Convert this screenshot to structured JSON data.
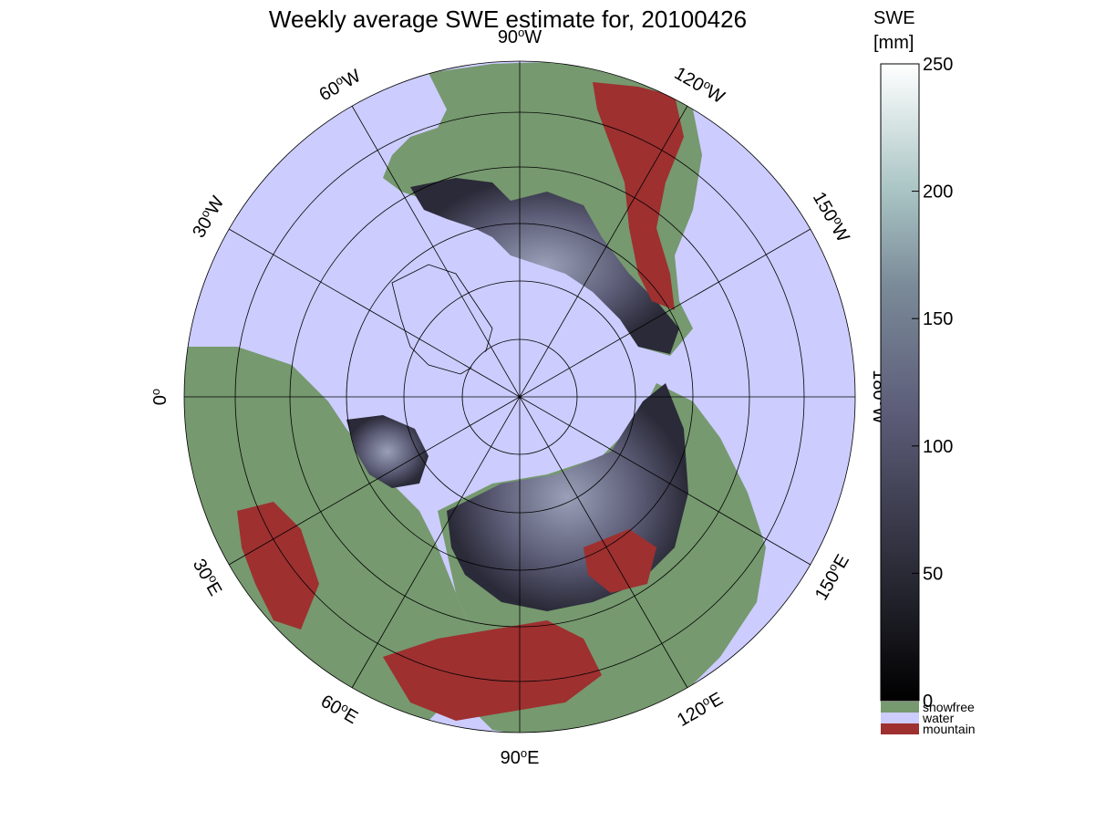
{
  "title": "Weekly average SWE estimate for, 20100426",
  "colorbar": {
    "title_line1": "SWE",
    "title_line2": "[mm]",
    "ticks": [
      "0",
      "50",
      "100",
      "150",
      "200",
      "250"
    ],
    "range": [
      0,
      250
    ],
    "categories": [
      {
        "label": "snowfree",
        "color": "#76996f"
      },
      {
        "label": "water",
        "color": "#ccccff"
      },
      {
        "label": "mountain",
        "color": "#9e3030"
      }
    ]
  },
  "longitude_labels": [
    {
      "lon": "90",
      "dir": "W"
    },
    {
      "lon": "120",
      "dir": "W"
    },
    {
      "lon": "150",
      "dir": "W"
    },
    {
      "lon": "180",
      "dir": "W"
    },
    {
      "lon": "150",
      "dir": "E"
    },
    {
      "lon": "120",
      "dir": "E"
    },
    {
      "lon": "90",
      "dir": "E"
    },
    {
      "lon": "60",
      "dir": "E"
    },
    {
      "lon": "30",
      "dir": "E"
    },
    {
      "lon": "0",
      "dir": ""
    },
    {
      "lon": "30",
      "dir": "W"
    },
    {
      "lon": "60",
      "dir": "W"
    }
  ],
  "colors": {
    "water": "#ccccff",
    "snowfree": "#76996f",
    "mountain": "#9e3030",
    "swe_low": "#0a0a10",
    "swe_mid": "#5a5a78",
    "swe_high": "#ffffff"
  },
  "projection": "north polar stereographic"
}
